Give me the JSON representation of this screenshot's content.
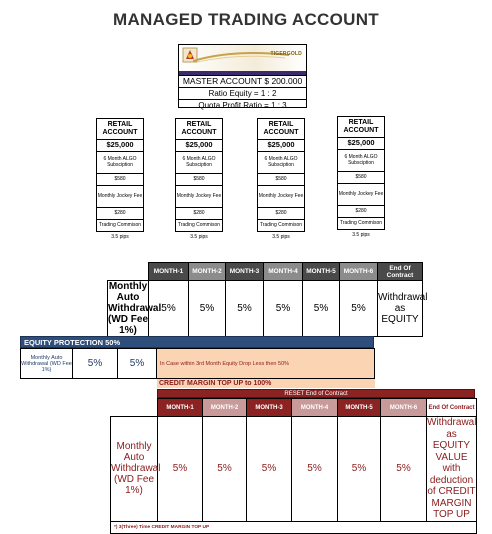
{
  "title": "MANAGED TRADING ACCOUNT",
  "master": {
    "logo_text": "TIGERGOLD",
    "account": "MASTER ACCOUNT  $ 200.000",
    "ratio_equity": "Ratio Equity = 1 : 2",
    "quota_ratio": "Quota Profit Ratio  = 1 : 3"
  },
  "retail_accounts": [
    {
      "title": "RETAIL ACCOUNT",
      "amount": "$25,000",
      "sub": "6 Month ALGO Subsciption",
      "sub_price": "$580",
      "fee": "Monthly Jockey Fee",
      "fee_price": "$280",
      "comm": "Trading Commison",
      "comm_value": "3.5 pips"
    },
    {
      "title": "RETAIL ACCOUNT",
      "amount": "$25,000",
      "sub": "6 Month ALGO Subsciption",
      "sub_price": "$580",
      "fee": "Monthly Jockey Fee",
      "fee_price": "$280",
      "comm": "Trading Commison",
      "comm_value": "3.5 pips"
    },
    {
      "title": "RETAIL ACCOUNT",
      "amount": "$25,000",
      "sub": "6 Month ALGO Subsciption",
      "sub_price": "$580",
      "fee": "Monthly Jockey Fee",
      "fee_price": "$280",
      "comm": "Trading Commison",
      "comm_value": "3.5 pips"
    },
    {
      "title": "RETAIL ACCOUNT",
      "amount": "$25,000",
      "sub": "6 Month ALGO Subsciption",
      "sub_price": "$580",
      "fee": "Monthly Jockey Fee",
      "fee_price": "$280",
      "comm": "Trading Commison",
      "comm_value": "3.5 pips"
    }
  ],
  "withdrawal_table": {
    "headers": [
      "MONTH-1",
      "MONTH-2",
      "MONTH-3",
      "MONTH-4",
      "MONTH-5",
      "MONTH-6",
      "End Of Contract"
    ],
    "header_colors": [
      "#4a4a4a",
      "#8c8c8c",
      "#4a4a4a",
      "#8c8c8c",
      "#4a4a4a",
      "#8c8c8c",
      "#4a4a4a"
    ],
    "row_label": "Monthly Auto Withdrawal (WD Fee 1%)",
    "values": [
      "5%",
      "5%",
      "5%",
      "5%",
      "5%",
      "5%"
    ],
    "end_value": "Withdrawal as EQUITY"
  },
  "equity_protection": {
    "title": "EQUITY PROTECTION 50%",
    "row_label": "Monthly Auto Withdrawal (WD Fee 1%)",
    "values": [
      "5%",
      "5%"
    ],
    "note": "In Case  within 3rd Month Equity Drop Less then 50%"
  },
  "credit_margin": {
    "title": "CREDIT MARGIN TOP UP to 100%",
    "reset_label": "RESET End of Contract",
    "headers": [
      "MONTH-1",
      "MONTH-2",
      "MONTH-3",
      "MONTH-4",
      "MONTH-5",
      "MONTH-6",
      "End Of Contract"
    ],
    "row_label": "Monthly Auto Withdrawal (WD Fee 1%)",
    "values": [
      "5%",
      "5%",
      "5%",
      "5%",
      "5%",
      "5%"
    ],
    "end_value": "Withdrawal as EQUITY VALUE with deduction of CREDIT MARGIN TOP UP",
    "footnote": "*) 3(Three) Time CREDIT MARGIN TOP UP"
  }
}
